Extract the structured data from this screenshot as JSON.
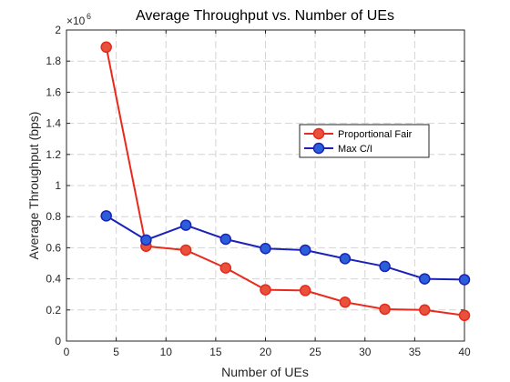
{
  "chart_data": {
    "type": "line",
    "title": "Average Throughput vs. Number of UEs",
    "xlabel": "Number of UEs",
    "ylabel": "Average Throughput (bps)",
    "y_exponent_label": "×10",
    "y_exponent_power": "6",
    "xlim": [
      0,
      40
    ],
    "ylim": [
      0,
      2
    ],
    "x_ticks": [
      0,
      5,
      10,
      15,
      20,
      25,
      30,
      35,
      40
    ],
    "y_ticks": [
      0,
      0.2,
      0.4,
      0.6,
      0.8,
      1,
      1.2,
      1.4,
      1.6,
      1.8,
      2
    ],
    "x_tick_labels": [
      "0",
      "5",
      "10",
      "15",
      "20",
      "25",
      "30",
      "35",
      "40"
    ],
    "y_tick_labels": [
      "0",
      "0.2",
      "0.4",
      "0.6",
      "0.8",
      "1",
      "1.2",
      "1.4",
      "1.6",
      "1.8",
      "2"
    ],
    "grid": true,
    "legend_position": "right",
    "x": [
      4,
      8,
      12,
      16,
      20,
      24,
      28,
      32,
      36,
      40
    ],
    "series": [
      {
        "name": "Proportional Fair",
        "color": "#e8291c",
        "marker_fill": "#e8513c",
        "values": [
          1.89,
          0.61,
          0.585,
          0.47,
          0.33,
          0.325,
          0.25,
          0.205,
          0.2,
          0.165
        ]
      },
      {
        "name": "Max C/I",
        "color": "#1a22b8",
        "marker_fill": "#2b5fd9",
        "values": [
          0.805,
          0.65,
          0.745,
          0.655,
          0.595,
          0.585,
          0.53,
          0.48,
          0.4,
          0.395
        ]
      }
    ]
  }
}
